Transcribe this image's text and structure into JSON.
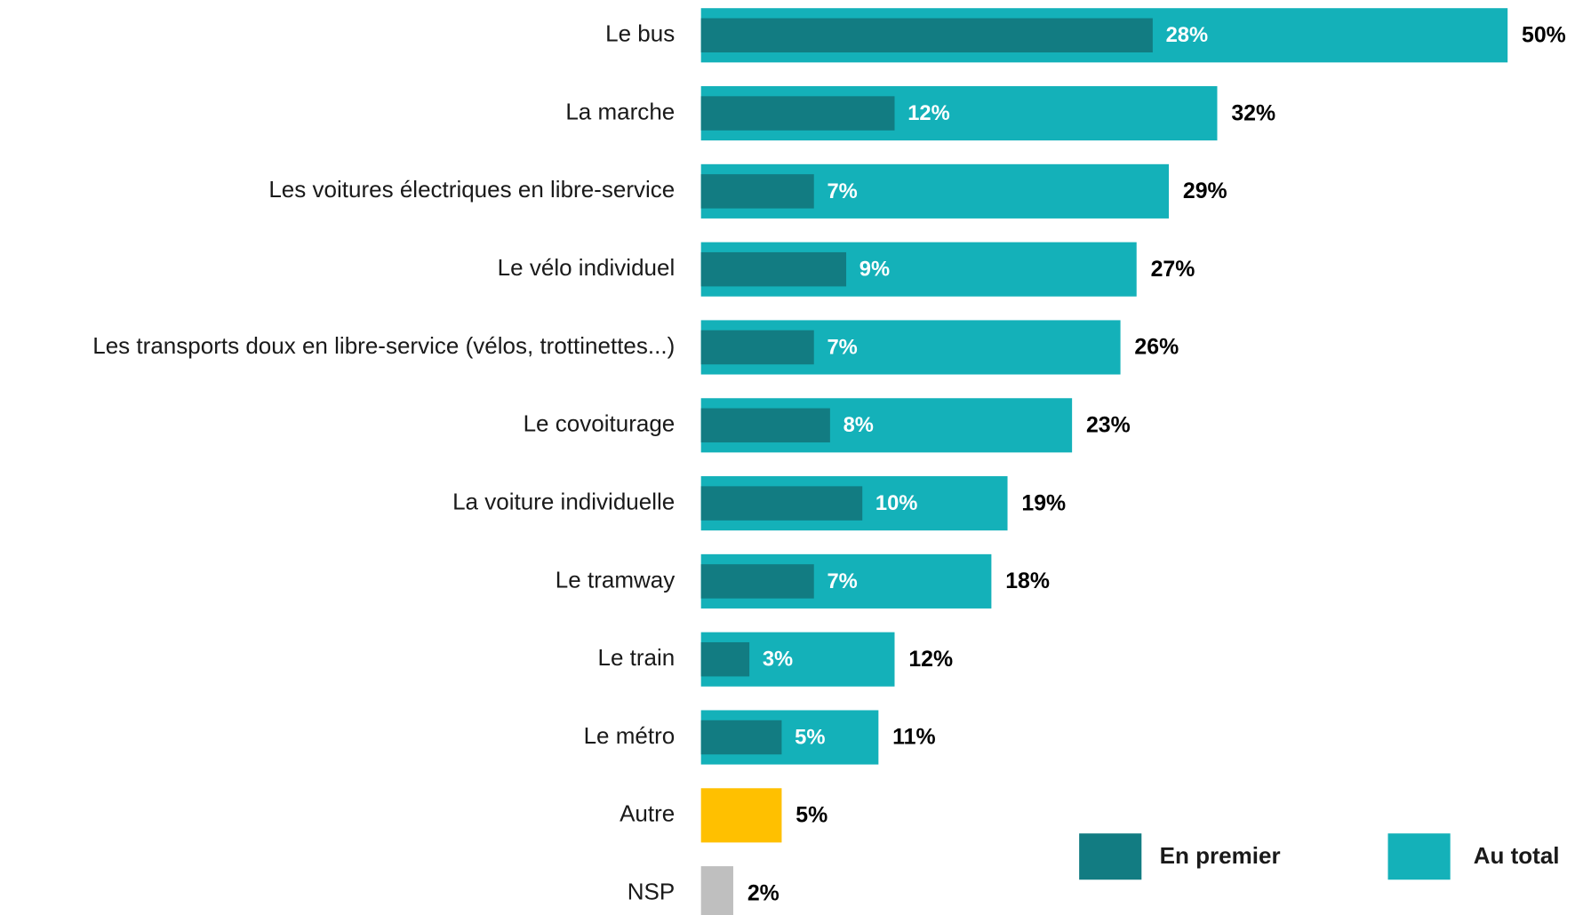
{
  "chart_data": {
    "type": "bar",
    "orientation": "horizontal",
    "overlap": true,
    "categories": [
      "Le bus",
      "La marche",
      "Les voitures électriques en libre-service",
      "Le vélo individuel",
      "Les transports doux en libre-service (vélos, trottinettes...)",
      "Le covoiturage",
      "La voiture individuelle",
      "Le tramway",
      "Le train",
      "Le métro",
      "Autre",
      "NSP"
    ],
    "series": [
      {
        "name": "En premier",
        "color": "#127c82",
        "values": [
          28,
          12,
          7,
          9,
          7,
          8,
          10,
          7,
          3,
          5,
          null,
          null
        ],
        "value_labels": [
          "28%",
          "12%",
          "7%",
          "9%",
          "7%",
          "8%",
          "10%",
          "7%",
          "3%",
          "5%",
          null,
          null
        ]
      },
      {
        "name": "Au total",
        "color": "#14b1b9",
        "point_colors": [
          "#14b1b9",
          "#14b1b9",
          "#14b1b9",
          "#14b1b9",
          "#14b1b9",
          "#14b1b9",
          "#14b1b9",
          "#14b1b9",
          "#14b1b9",
          "#14b1b9",
          "#ffc000",
          "#bfbfbf"
        ],
        "values": [
          50,
          32,
          29,
          27,
          26,
          23,
          19,
          18,
          12,
          11,
          5,
          2
        ],
        "value_labels": [
          "50%",
          "32%",
          "29%",
          "27%",
          "26%",
          "23%",
          "19%",
          "18%",
          "12%",
          "11%",
          "5%",
          "2%"
        ]
      }
    ],
    "legend": "bottom-right",
    "grid": false
  }
}
